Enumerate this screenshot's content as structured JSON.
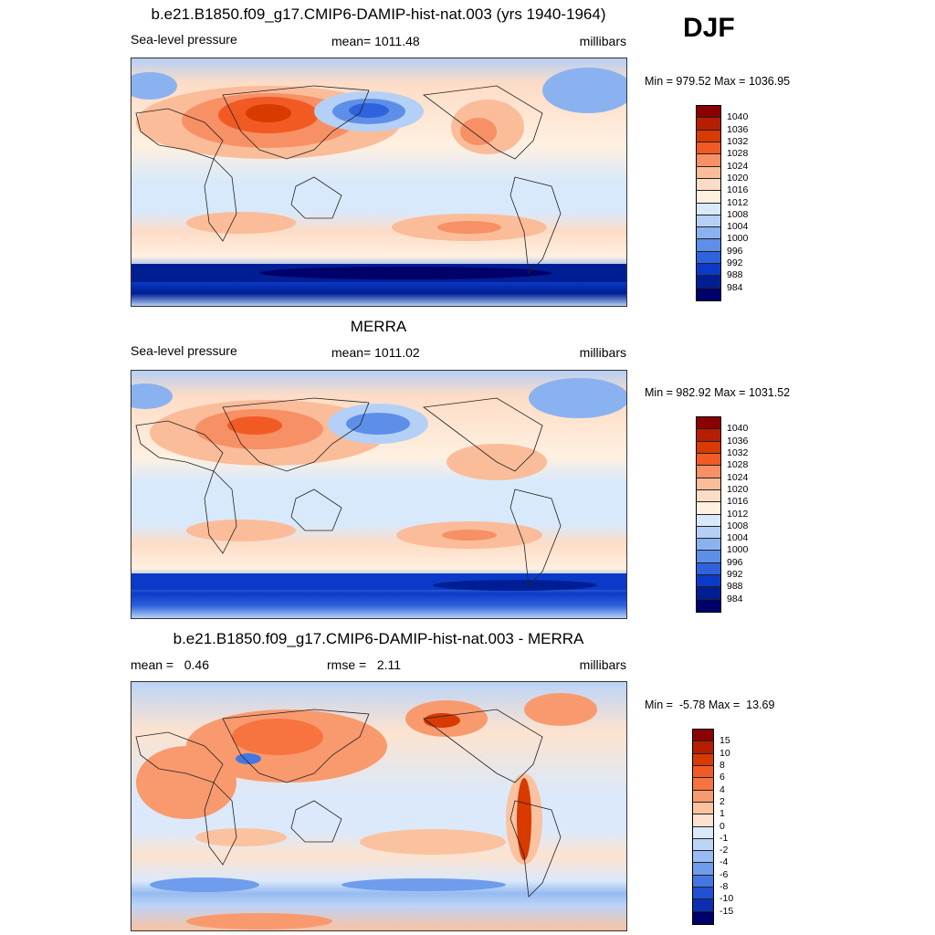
{
  "season": "DJF",
  "panels": [
    {
      "title": "b.e21.B1850.f09_g17.CMIP6-DAMIP-hist-nat.003 (yrs 1940-1964)",
      "left_label": "Sea-level pressure",
      "center_label": "mean= 1011.48",
      "right_label": "millibars",
      "minmax": "Min = 979.52 Max = 1036.95",
      "levels": [
        "1040",
        "1036",
        "1032",
        "1028",
        "1024",
        "1020",
        "1016",
        "1012",
        "1008",
        "1004",
        "1000",
        "996",
        "992",
        "988",
        "984"
      ],
      "colors": [
        "#8b0000",
        "#b51e00",
        "#d83a00",
        "#f25a24",
        "#f79065",
        "#fbbc99",
        "#fddcc6",
        "#fff0e0",
        "#d8e9fb",
        "#b5d0f6",
        "#8bb2f0",
        "#5e8fe8",
        "#2f62dd",
        "#0b3ac8",
        "#001e94",
        "#00006a"
      ]
    },
    {
      "title": "MERRA",
      "left_label": "Sea-level pressure",
      "center_label": "mean= 1011.02",
      "right_label": "millibars",
      "minmax": "Min = 982.92 Max = 1031.52",
      "levels": [
        "1040",
        "1036",
        "1032",
        "1028",
        "1024",
        "1020",
        "1016",
        "1012",
        "1008",
        "1004",
        "1000",
        "996",
        "992",
        "988",
        "984"
      ],
      "colors": [
        "#8b0000",
        "#b51e00",
        "#d83a00",
        "#f25a24",
        "#f79065",
        "#fbbc99",
        "#fddcc6",
        "#fff0e0",
        "#d8e9fb",
        "#b5d0f6",
        "#8bb2f0",
        "#5e8fe8",
        "#2f62dd",
        "#0b3ac8",
        "#001e94",
        "#00006a"
      ]
    },
    {
      "title": "b.e21.B1850.f09_g17.CMIP6-DAMIP-hist-nat.003 - MERRA",
      "left_label": "mean =   0.46",
      "center_label": "rmse =   2.11",
      "right_label": "millibars",
      "minmax": "Min =  -5.78 Max =  13.69",
      "levels": [
        "15",
        "10",
        "8",
        "6",
        "4",
        "2",
        "1",
        "0",
        "-1",
        "-2",
        "-4",
        "-6",
        "-8",
        "-10",
        "-15"
      ],
      "colors": [
        "#8b0000",
        "#b51e00",
        "#d83a00",
        "#f25a24",
        "#f7733f",
        "#f99a6e",
        "#fbc2a0",
        "#fde3cf",
        "#dbe9fb",
        "#bcd4f7",
        "#97bbf2",
        "#6f9cec",
        "#4577e3",
        "#1f50d6",
        "#0a2fb0",
        "#00006a"
      ]
    }
  ]
}
